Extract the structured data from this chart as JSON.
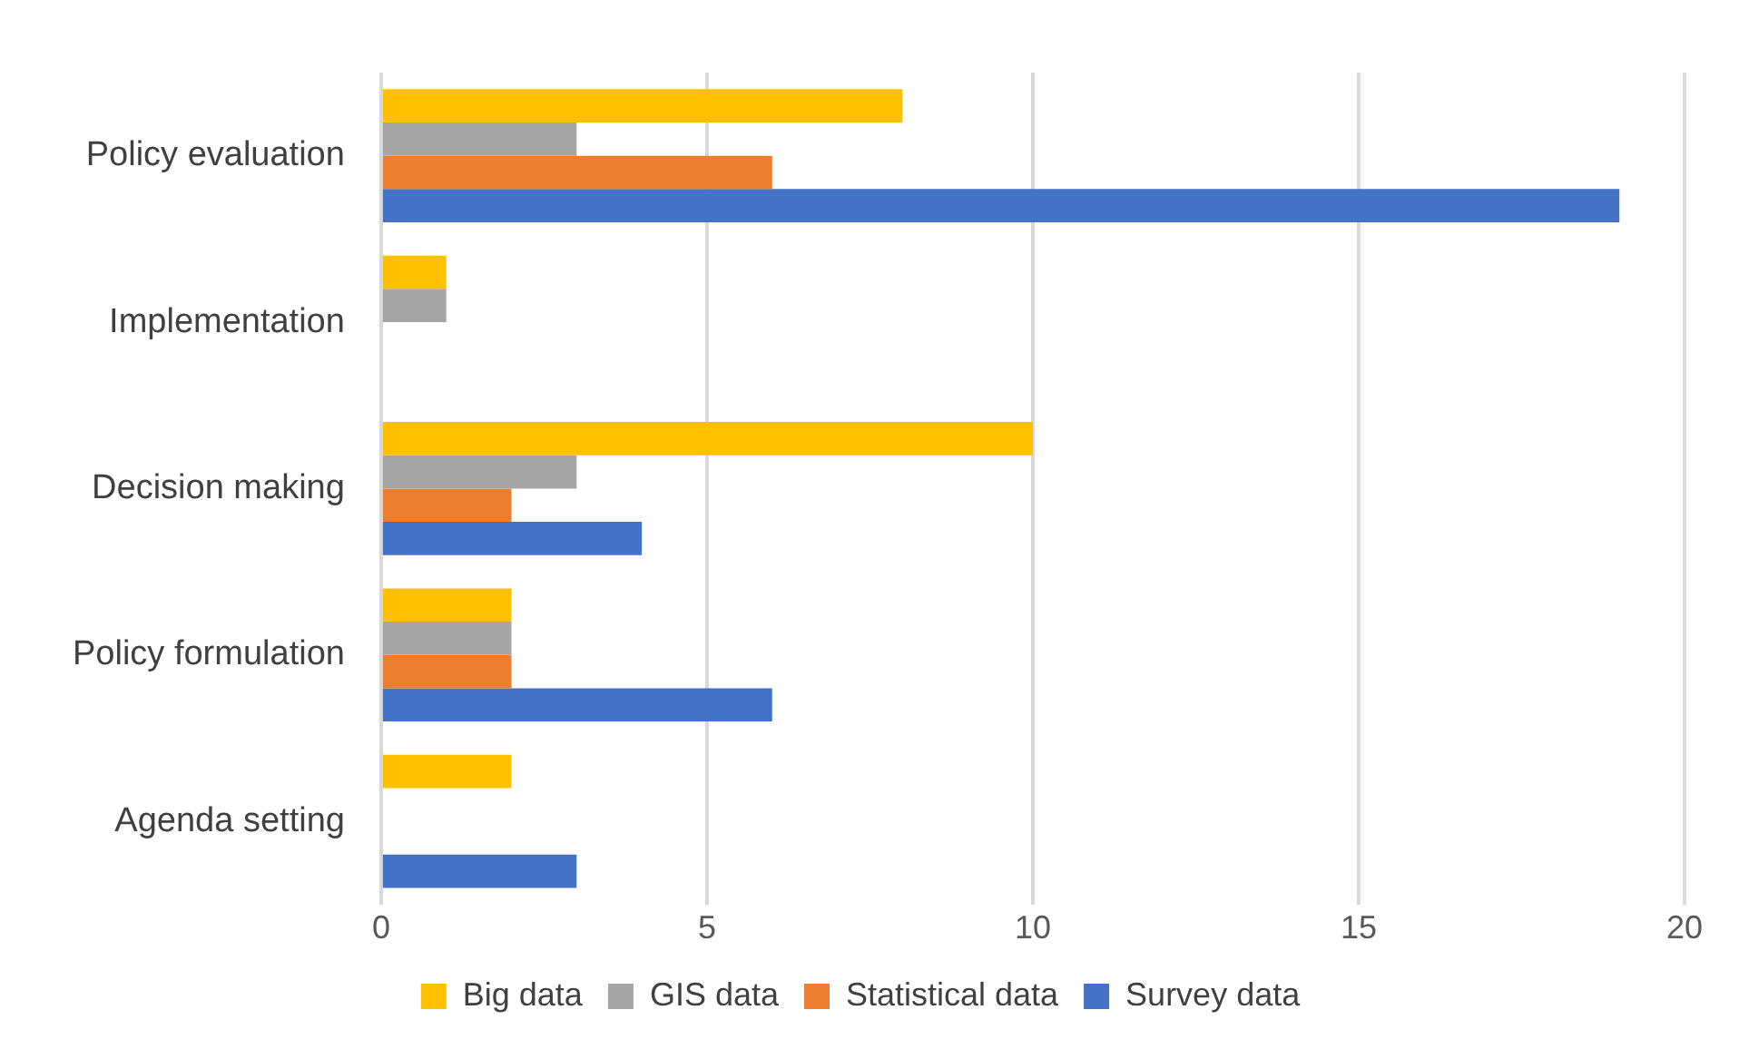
{
  "chart_data": {
    "type": "bar",
    "orientation": "horizontal",
    "categories": [
      "Policy evaluation",
      "Implementation",
      "Decision making",
      "Policy formulation",
      "Agenda setting"
    ],
    "series": [
      {
        "name": "Big data",
        "color": "#ffc000",
        "values": [
          8,
          1,
          10,
          2,
          2
        ]
      },
      {
        "name": "GIS data",
        "color": "#a5a5a5",
        "values": [
          3,
          1,
          3,
          2,
          0
        ]
      },
      {
        "name": "Statistical data",
        "color": "#ed7d31",
        "values": [
          6,
          0,
          2,
          2,
          0
        ]
      },
      {
        "name": "Survey data",
        "color": "#4472c4",
        "values": [
          19,
          0,
          4,
          6,
          3
        ]
      }
    ],
    "xlim": [
      0,
      20
    ],
    "xticks": [
      0,
      5,
      10,
      15,
      20
    ],
    "grid": "x",
    "legend": "bottom"
  }
}
